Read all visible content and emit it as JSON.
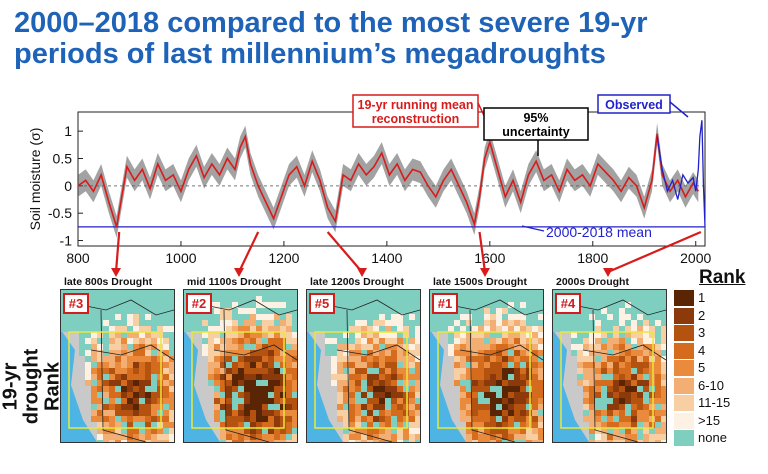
{
  "title": {
    "line1": "2000–2018 compared to the most severe 19-yr",
    "line2": "periods of last millennium’s megadroughts"
  },
  "chart_data": {
    "type": "line",
    "ylabel": "Soil moisture (σ)",
    "xlim": [
      800,
      2018
    ],
    "ylim": [
      -1.1,
      1.35
    ],
    "xticks": [
      800,
      1000,
      1200,
      1400,
      1600,
      1800,
      2000
    ],
    "yticks": [
      -1,
      -0.5,
      0,
      0.5,
      1
    ],
    "ytick_labels": [
      "-1",
      "-0.5",
      "0",
      "0.5",
      "1"
    ],
    "series": [
      {
        "name": "19-yr running mean reconstruction",
        "color": "#d81b1b",
        "x": [
          800,
          815,
          830,
          845,
          860,
          875,
          885,
          895,
          910,
          925,
          940,
          955,
          970,
          985,
          1000,
          1015,
          1030,
          1045,
          1060,
          1075,
          1090,
          1105,
          1115,
          1125,
          1135,
          1150,
          1165,
          1180,
          1195,
          1210,
          1225,
          1240,
          1255,
          1270,
          1285,
          1300,
          1315,
          1330,
          1345,
          1360,
          1375,
          1390,
          1405,
          1420,
          1435,
          1450,
          1465,
          1480,
          1495,
          1510,
          1525,
          1540,
          1555,
          1570,
          1580,
          1590,
          1600,
          1615,
          1630,
          1645,
          1660,
          1675,
          1690,
          1705,
          1720,
          1735,
          1750,
          1765,
          1780,
          1795,
          1810,
          1825,
          1840,
          1855,
          1870,
          1885,
          1900,
          1915,
          1925,
          1935,
          1950,
          1965,
          1980,
          1995,
          2005
        ],
        "y": [
          0.0,
          0.1,
          -0.1,
          0.2,
          -0.3,
          -0.75,
          -0.2,
          0.35,
          0.1,
          0.3,
          -0.05,
          0.4,
          0.1,
          0.2,
          -0.1,
          0.3,
          0.55,
          0.15,
          0.4,
          0.2,
          0.5,
          0.3,
          0.7,
          0.9,
          0.4,
          0.0,
          -0.3,
          -0.6,
          -0.2,
          0.2,
          0.35,
          0.0,
          0.45,
          0.1,
          -0.4,
          -0.65,
          0.2,
          0.1,
          0.4,
          0.2,
          0.35,
          0.6,
          0.2,
          0.4,
          0.1,
          0.3,
          0.25,
          0.0,
          -0.2,
          0.1,
          0.3,
          0.0,
          -0.3,
          -0.7,
          -0.2,
          0.5,
          0.8,
          0.3,
          -0.2,
          0.1,
          -0.3,
          0.2,
          0.45,
          0.1,
          0.2,
          -0.1,
          0.3,
          0.1,
          0.2,
          0.0,
          0.4,
          0.25,
          0.1,
          -0.1,
          0.15,
          0.0,
          -0.4,
          0.1,
          0.95,
          0.2,
          -0.1,
          0.1,
          -0.2,
          0.05,
          -0.1
        ]
      },
      {
        "name": "Observed",
        "color": "#2222cc",
        "x": [
          1925,
          1935,
          1945,
          1955,
          1965,
          1975,
          1985,
          1995,
          2000,
          2005,
          2008,
          2012,
          2015,
          2018
        ],
        "y": [
          0.9,
          0.3,
          -0.1,
          0.1,
          -0.25,
          0.2,
          0.05,
          0.15,
          -0.1,
          0.3,
          0.9,
          1.2,
          0.0,
          -0.75
        ]
      },
      {
        "name": "2000-2018 mean",
        "color": "#2222cc",
        "x": [
          800,
          2018
        ],
        "y": [
          -0.75,
          -0.75
        ]
      }
    ],
    "annotations": {
      "reconstruction": "19-yr running mean\nreconstruction",
      "uncertainty": "95%\nuncertainty",
      "observed": "Observed",
      "mean_label": "2000-2018 mean"
    }
  },
  "maps": [
    {
      "label": "late 800s Drought",
      "rank": "#3",
      "year": 880
    },
    {
      "label": "mid 1100s Drought",
      "rank": "#2",
      "year": 1150
    },
    {
      "label": "late 1200s Drought",
      "rank": "#5",
      "year": 1285
    },
    {
      "label": "late 1500s Drought",
      "rank": "#1",
      "year": 1580
    },
    {
      "label": "2000s Drought",
      "rank": "#4",
      "year": 2010
    }
  ],
  "side_label": {
    "line1": "19-yr drought",
    "line2": "Rank"
  },
  "legend": {
    "title": "Rank",
    "items": [
      {
        "label": "1",
        "color": "#5a2505"
      },
      {
        "label": "2",
        "color": "#8c3a0c"
      },
      {
        "label": "3",
        "color": "#b4520f"
      },
      {
        "label": "4",
        "color": "#d56b1c"
      },
      {
        "label": "5",
        "color": "#e98a3c"
      },
      {
        "label": "6-10",
        "color": "#f3ae73"
      },
      {
        "label": "11-15",
        "color": "#f8cfa3"
      },
      {
        "label": ">15",
        "color": "#fdf1e3"
      },
      {
        "label": "none",
        "color": "#7fcfc0"
      }
    ]
  },
  "colors": {
    "ocean": "#4db4e4",
    "land_gray": "#c9c9c9",
    "box": "#e8e83a"
  }
}
